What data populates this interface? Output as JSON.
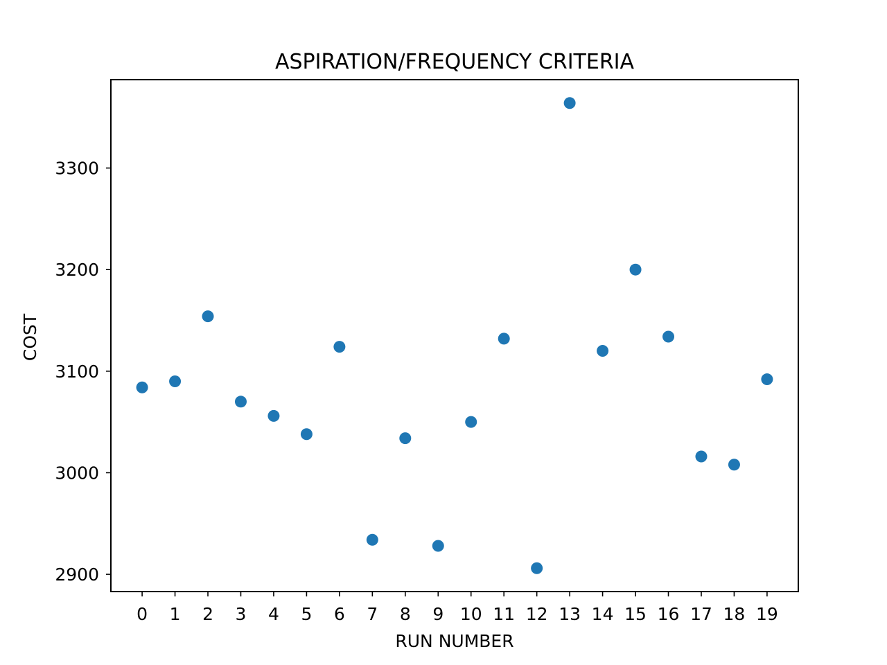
{
  "chart_data": {
    "type": "scatter",
    "title": "ASPIRATION/FREQUENCY CRITERIA",
    "xlabel": "RUN NUMBER",
    "ylabel": "COST",
    "x": [
      0,
      1,
      2,
      3,
      4,
      5,
      6,
      7,
      8,
      9,
      10,
      11,
      12,
      13,
      14,
      15,
      16,
      17,
      18,
      19
    ],
    "y": [
      3084,
      3090,
      3154,
      3070,
      3056,
      3038,
      3124,
      2934,
      3034,
      2928,
      3050,
      3132,
      2906,
      3364,
      3120,
      3200,
      3134,
      3016,
      3008,
      3092
    ],
    "xticks": [
      "0",
      "1",
      "2",
      "3",
      "4",
      "5",
      "6",
      "7",
      "8",
      "9",
      "10",
      "11",
      "12",
      "13",
      "14",
      "15",
      "16",
      "17",
      "18",
      "19"
    ],
    "yticks": [
      "2900",
      "3000",
      "3100",
      "3200",
      "3300"
    ],
    "xlim": [
      -0.95,
      19.95
    ],
    "ylim": [
      2883,
      3387
    ],
    "grid": false,
    "marker_color": "#1f77b4"
  }
}
